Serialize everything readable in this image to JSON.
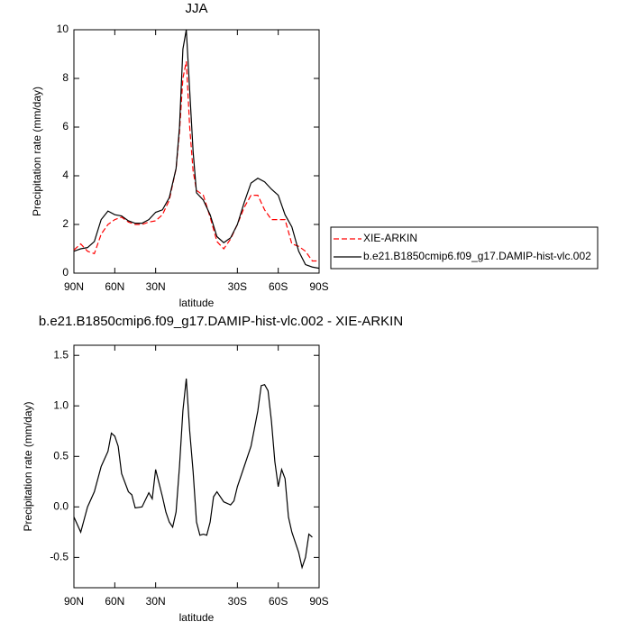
{
  "chart_data": [
    {
      "type": "line",
      "title": "JJA",
      "x_label": "latitude",
      "y_label": "Precipitation rate (mm/day)",
      "x": [
        90,
        85,
        80,
        75,
        70,
        65,
        60,
        55,
        50,
        45,
        40,
        35,
        30,
        25,
        20,
        15,
        12.5,
        10,
        7.5,
        5,
        2.5,
        0,
        -5,
        -10,
        -15,
        -20,
        -25,
        -30,
        -35,
        -40,
        -45,
        -50,
        -55,
        -60,
        -65,
        -70,
        -75,
        -80,
        -85,
        -90
      ],
      "series": [
        {
          "name": "XIE-ARKIN",
          "color": "#ff0000",
          "dashed": true,
          "values": [
            0.95,
            1.2,
            0.9,
            0.8,
            1.6,
            2.0,
            2.2,
            2.3,
            2.1,
            2.0,
            2.0,
            2.1,
            2.15,
            2.4,
            3.0,
            4.3,
            5.8,
            8.0,
            8.7,
            6.0,
            4.2,
            3.4,
            3.2,
            2.3,
            1.3,
            1.0,
            1.4,
            2.0,
            2.7,
            3.2,
            3.2,
            2.6,
            2.2,
            2.2,
            2.2,
            1.2,
            1.1,
            0.9,
            0.5,
            0.5
          ]
        },
        {
          "name": "b.e21.B1850cmip6.f09_g17.DAMIP-hist-vlc.002",
          "color": "#000000",
          "dashed": false,
          "values": [
            0.9,
            1.0,
            1.05,
            1.3,
            2.2,
            2.55,
            2.4,
            2.35,
            2.15,
            2.05,
            2.05,
            2.2,
            2.5,
            2.6,
            3.1,
            4.3,
            6.0,
            9.2,
            10.0,
            7.5,
            5.0,
            3.3,
            3.0,
            2.4,
            1.5,
            1.25,
            1.45,
            2.0,
            2.9,
            3.7,
            3.9,
            3.75,
            3.45,
            3.2,
            2.4,
            1.9,
            0.9,
            0.35,
            0.25,
            0.2
          ]
        }
      ],
      "xlim": [
        90,
        -90
      ],
      "xticks": [
        {
          "value": 90,
          "label": "90N"
        },
        {
          "value": 60,
          "label": "60N"
        },
        {
          "value": 30,
          "label": "30N"
        },
        {
          "value": -30,
          "label": "30S"
        },
        {
          "value": -60,
          "label": "60S"
        },
        {
          "value": -90,
          "label": "90S"
        }
      ],
      "ylim": [
        0,
        10
      ],
      "yticks": [
        0,
        2,
        4,
        6,
        8,
        10
      ],
      "legend": "right"
    },
    {
      "type": "line",
      "title": "b.e21.B1850cmip6.f09_g17.DAMIP-hist-vlc.002 - XIE-ARKIN",
      "x_label": "latitude",
      "y_label": "Precipitation rate (mm/day)",
      "x": [
        90,
        85,
        80,
        75,
        70,
        65,
        62.5,
        60,
        57.5,
        55,
        50,
        47.5,
        45,
        40,
        35,
        32.5,
        30,
        25,
        22.5,
        20,
        17.5,
        15,
        12.5,
        10,
        7.5,
        5,
        2.5,
        0,
        -2.5,
        -5,
        -7.5,
        -10,
        -12.5,
        -15,
        -20,
        -25,
        -27.5,
        -30,
        -35,
        -40,
        -45,
        -47.5,
        -50,
        -52.5,
        -55,
        -57.5,
        -60,
        -62.5,
        -65,
        -67.5,
        -70,
        -75,
        -77.5,
        -80,
        -82.5,
        -85
      ],
      "series": [
        {
          "color": "#000000",
          "dashed": false,
          "values": [
            -0.1,
            -0.25,
            0.0,
            0.15,
            0.4,
            0.55,
            0.73,
            0.7,
            0.6,
            0.33,
            0.15,
            0.12,
            -0.01,
            0.0,
            0.14,
            0.08,
            0.37,
            0.1,
            -0.05,
            -0.15,
            -0.2,
            -0.05,
            0.4,
            0.95,
            1.27,
            0.75,
            0.35,
            -0.15,
            -0.28,
            -0.27,
            -0.28,
            -0.15,
            0.1,
            0.15,
            0.05,
            0.02,
            0.06,
            0.2,
            0.4,
            0.6,
            0.95,
            1.2,
            1.21,
            1.15,
            0.85,
            0.45,
            0.2,
            0.37,
            0.28,
            -0.1,
            -0.25,
            -0.45,
            -0.6,
            -0.5,
            -0.27,
            -0.3
          ]
        }
      ],
      "xlim": [
        90,
        -90
      ],
      "xticks": [
        {
          "value": 90,
          "label": "90N"
        },
        {
          "value": 60,
          "label": "60N"
        },
        {
          "value": 30,
          "label": "30N"
        },
        {
          "value": -30,
          "label": "30S"
        },
        {
          "value": -60,
          "label": "60S"
        },
        {
          "value": -90,
          "label": "90S"
        }
      ],
      "ylim": [
        -0.8,
        1.6
      ],
      "yticks": [
        -0.5,
        {
          "value": 0,
          "label": "0.0"
        },
        0.5,
        {
          "value": 1,
          "label": "1.0"
        },
        1.5
      ]
    }
  ]
}
